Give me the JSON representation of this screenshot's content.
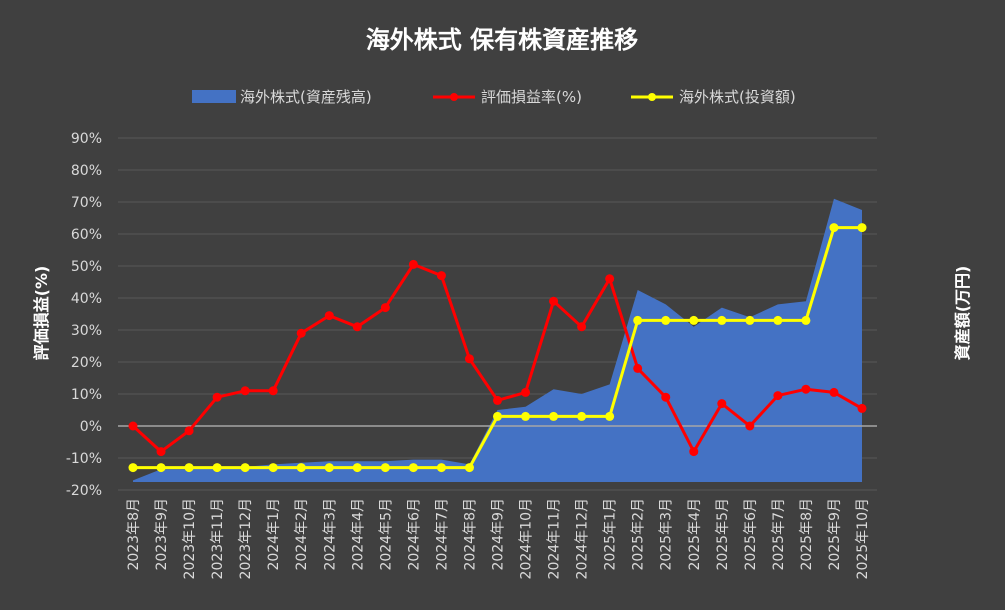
{
  "chart_data": {
    "type": "line",
    "title": "海外株式 保有株資産推移",
    "categories": [
      "2023年8月",
      "2023年9月",
      "2023年10月",
      "2023年11月",
      "2023年12月",
      "2024年1月",
      "2024年2月",
      "2024年3月",
      "2024年4月",
      "2024年5月",
      "2024年6月",
      "2024年7月",
      "2024年8月",
      "2024年9月",
      "2024年10月",
      "2024年11月",
      "2024年12月",
      "2025年1月",
      "2025年2月",
      "2025年3月",
      "2025年4月",
      "2025年5月",
      "2025年6月",
      "2025年7月",
      "2025年8月",
      "2025年9月",
      "2025年10月"
    ],
    "ylabel_left": "評価損益(%)",
    "ylabel_right": "資産額(万円)",
    "ylim": [
      -20,
      90
    ],
    "yticks": [
      -20,
      -10,
      0,
      10,
      20,
      30,
      40,
      50,
      60,
      70,
      80,
      90
    ],
    "ytick_labels": [
      "-20%",
      "-10%",
      "0%",
      "10%",
      "20%",
      "30%",
      "40%",
      "50%",
      "60%",
      "70%",
      "80%",
      "90%"
    ],
    "grid": true,
    "legend_position": "top",
    "series": [
      {
        "name": "海外株式(資産残高)",
        "kind": "area",
        "color": "#4472c4",
        "values": [
          -17,
          -13.5,
          -13.5,
          -13,
          -12.8,
          -12,
          -11.5,
          -11,
          -11,
          -11,
          -10.5,
          -10.5,
          -12,
          5,
          6,
          11.5,
          10,
          13,
          42.5,
          38,
          31,
          37,
          34,
          38,
          39,
          71,
          67.5
        ]
      },
      {
        "name": "評価損益率(%)",
        "kind": "line",
        "color": "#ff0000",
        "values": [
          0,
          -8,
          -1.5,
          9,
          11,
          11,
          29,
          34.5,
          31,
          37,
          50.5,
          47,
          21,
          8,
          10.5,
          39,
          31,
          46,
          18,
          9,
          -8,
          7,
          0,
          9.5,
          11.5,
          10.5,
          5.5
        ]
      },
      {
        "name": "海外株式(投資額)",
        "kind": "line",
        "color": "#ffff00",
        "values": [
          -13,
          -13,
          -13,
          -13,
          -13,
          -13,
          -13,
          -13,
          -13,
          -13,
          -13,
          -13,
          -13,
          3,
          3,
          3,
          3,
          3,
          33,
          33,
          33,
          33,
          33,
          33,
          33,
          62,
          62
        ]
      }
    ]
  }
}
